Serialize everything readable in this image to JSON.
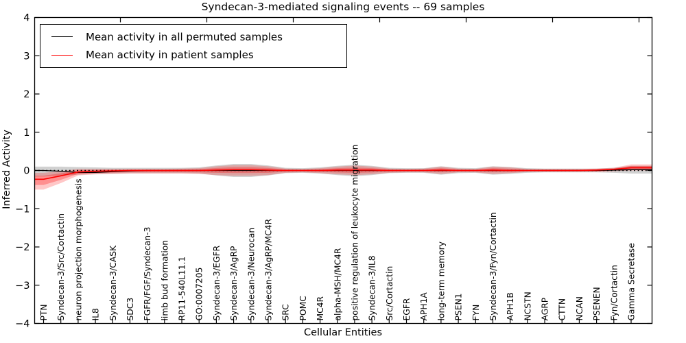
{
  "title": "Syndecan-3-mediated signaling events -- 69 samples",
  "axes": {
    "xlabel": "Cellular Entities",
    "ylabel": "Inferred Activity",
    "ylim": [
      -4,
      4
    ],
    "yticks": [
      -4,
      -3,
      -2,
      -1,
      0,
      1,
      2,
      3,
      4
    ],
    "grid": false,
    "tick_direction": "in"
  },
  "legend": {
    "position": "upper left",
    "items": [
      {
        "label": "Mean activity in all permuted samples",
        "color": "#000000"
      },
      {
        "label": "Mean activity in patient samples",
        "color": "#ff0000"
      }
    ]
  },
  "chart_data": {
    "type": "line",
    "title": "Syndecan-3-mediated signaling events -- 69 samples",
    "xlabel": "Cellular Entities",
    "ylabel": "Inferred Activity",
    "ylim": [
      -4,
      4
    ],
    "legend_position": "upper left",
    "grid": false,
    "categories": [
      "PTN",
      "Syndecan-3/Src/Cortactin",
      "neuron projection morphogenesis",
      "IL8",
      "Syndecan-3/CASK",
      "SDC3",
      "FGFR/FGF/Syndecan-3",
      "limb bud formation",
      "RP11-540L11.1",
      "GO:0007205",
      "Syndecan-3/EGFR",
      "Syndecan-3/AgRP",
      "Syndecan-3/Neurocan",
      "Syndecan-3/AgRP/MC4R",
      "SRC",
      "POMC",
      "MC4R",
      "alpha-MSH/MC4R",
      "positive regulation of leukocyte migration",
      "Syndecan-3/IL8",
      "Src/Cortactin",
      "EGFR",
      "APH1A",
      "long-term memory",
      "PSEN1",
      "FYN",
      "Syndecan-3/Fyn/Cortactin",
      "APH1B",
      "NCSTN",
      "AGRP",
      "CTTN",
      "NCAN",
      "PSENEN",
      "Fyn/Cortactin",
      "Gamma Secretase"
    ],
    "series": [
      {
        "name": "Mean activity in all permuted samples",
        "color": "#000000",
        "values": [
          0.0,
          -0.02,
          -0.05,
          -0.05,
          -0.03,
          -0.01,
          0,
          0,
          0,
          0,
          0,
          0,
          0,
          0,
          0,
          0,
          0,
          0,
          0,
          0,
          0,
          0,
          0,
          0,
          0,
          0,
          0,
          0,
          0,
          0,
          0,
          0,
          0.0,
          0.01,
          0.02
        ]
      },
      {
        "name": "Mean activity in patient samples",
        "color": "#ff0000",
        "values": [
          -0.23,
          -0.14,
          -0.04,
          -0.02,
          -0.01,
          0,
          0,
          0,
          0,
          0,
          0.01,
          0.02,
          0.02,
          0.01,
          0,
          0,
          0,
          0.01,
          0.01,
          0.01,
          0,
          0,
          0,
          0.01,
          0,
          0,
          0.01,
          0,
          0,
          0,
          0,
          0,
          0.01,
          0.03,
          0.07
        ]
      }
    ],
    "bands": [
      {
        "series": "Mean activity in all permuted samples",
        "color": "#999999",
        "opacity": 0.45,
        "upper": [
          0.1,
          0.1,
          0.09,
          0.08,
          0.07,
          0.07,
          0.07,
          0.07,
          0.07,
          0.08,
          0.13,
          0.17,
          0.17,
          0.13,
          0.07,
          0.06,
          0.08,
          0.12,
          0.15,
          0.12,
          0.07,
          0.06,
          0.06,
          0.11,
          0.07,
          0.06,
          0.11,
          0.09,
          0.06,
          0.05,
          0.05,
          0.05,
          0.05,
          0.07,
          0.12
        ],
        "lower": [
          -0.16,
          -0.13,
          -0.11,
          -0.09,
          -0.08,
          -0.07,
          -0.07,
          -0.07,
          -0.07,
          -0.08,
          -0.13,
          -0.17,
          -0.17,
          -0.13,
          -0.07,
          -0.06,
          -0.08,
          -0.12,
          -0.15,
          -0.12,
          -0.07,
          -0.06,
          -0.06,
          -0.11,
          -0.07,
          -0.06,
          -0.11,
          -0.09,
          -0.06,
          -0.05,
          -0.05,
          -0.05,
          -0.05,
          -0.06,
          -0.08
        ]
      },
      {
        "series": "Mean activity in patient samples",
        "color": "#ff0000",
        "opacity": 0.22,
        "upper": [
          -0.06,
          -0.02,
          0.04,
          0.04,
          0.04,
          0.04,
          0.04,
          0.04,
          0.05,
          0.06,
          0.11,
          0.14,
          0.14,
          0.11,
          0.05,
          0.04,
          0.06,
          0.1,
          0.13,
          0.1,
          0.05,
          0.04,
          0.05,
          0.1,
          0.05,
          0.04,
          0.1,
          0.08,
          0.04,
          0.04,
          0.04,
          0.04,
          0.05,
          0.07,
          0.16
        ],
        "lower": [
          -0.5,
          -0.33,
          -0.13,
          -0.1,
          -0.09,
          -0.08,
          -0.08,
          -0.08,
          -0.08,
          -0.09,
          -0.12,
          -0.14,
          -0.14,
          -0.12,
          -0.06,
          -0.05,
          -0.07,
          -0.1,
          -0.12,
          -0.1,
          -0.06,
          -0.05,
          -0.05,
          -0.09,
          -0.05,
          -0.05,
          -0.09,
          -0.07,
          -0.04,
          -0.04,
          -0.04,
          -0.04,
          -0.04,
          -0.02,
          0.0
        ]
      }
    ],
    "reference_line": {
      "y": 0,
      "style": "dotted",
      "color": "#000000"
    }
  }
}
